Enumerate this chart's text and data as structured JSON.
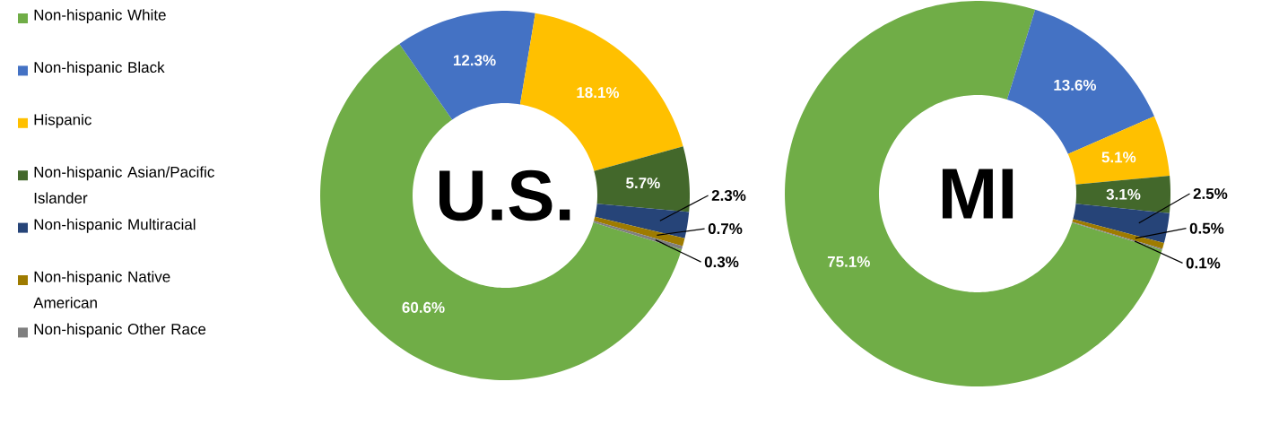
{
  "chart_data": [
    {
      "type": "donut",
      "title": "U.S.",
      "legend": "left",
      "categories": [
        "Non-hispanic White",
        "Non-hispanic Black",
        "Hispanic",
        "Non-hispanic Asian/Pacific Islander",
        "Non-hispanic Multiracial",
        "Non-hispanic Native American",
        "Non-hispanic Other Race"
      ],
      "values": [
        60.6,
        12.3,
        18.1,
        5.7,
        2.3,
        0.7,
        0.3
      ],
      "colors": [
        "#70ad47",
        "#4472c4",
        "#ffc000",
        "#43682b",
        "#264478",
        "#9e7b00",
        "#7f7f7f"
      ],
      "value_labels": [
        "60.6%",
        "12.3%",
        "18.1%",
        "5.7%",
        "2.3%",
        "0.7%",
        "0.3%"
      ]
    },
    {
      "type": "donut",
      "title": "MI",
      "categories": [
        null,
        null,
        null,
        null,
        null,
        null,
        null
      ],
      "values": [
        75.1,
        13.6,
        5.1,
        3.1,
        2.5,
        0.5,
        0.1
      ],
      "colors": [
        "#70ad47",
        "#4472c4",
        "#ffc000",
        "#43682b",
        "#264478",
        "#9e7b00",
        "#7f7f7f"
      ],
      "value_labels": [
        "75.1%",
        "13.6%",
        "5.1%",
        "3.1%",
        "2.5%",
        "0.5%",
        "0.1%"
      ]
    }
  ]
}
